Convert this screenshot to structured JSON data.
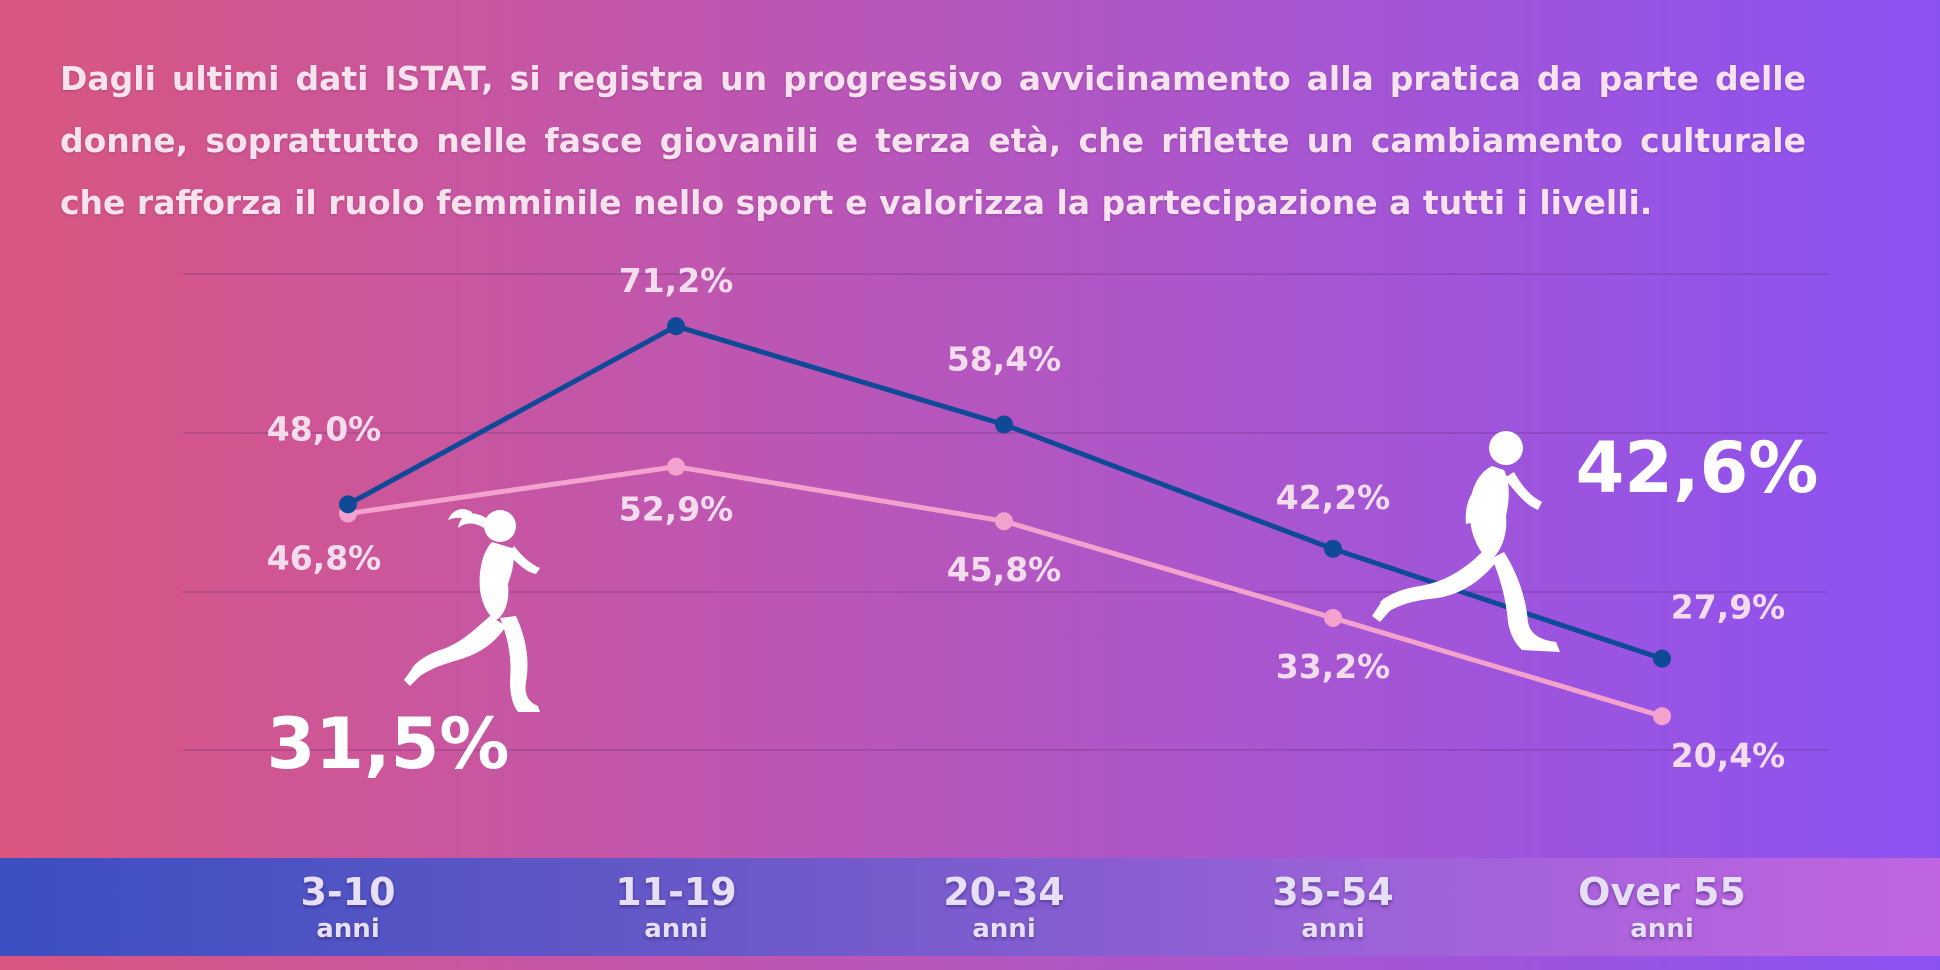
{
  "intro_text": "Dagli ultimi dati ISTAT, si registra un progressivo avvicinamento alla pratica da parte delle donne, soprattutto nelle fasce giovanili e terza età, che riflette un cambiamento culturale che rafforza il ruolo femminile nello sport e valorizza la partecipazione a tutti i livelli.",
  "colors": {
    "male_line": "#0f4a97",
    "female_line": "#f3a2cd",
    "background_start": "#d9567f",
    "background_end": "#8b52f3"
  },
  "highlights": {
    "female_total": "31,5%",
    "male_total": "42,6%"
  },
  "icons": {
    "female": "female-runner-icon",
    "male": "male-runner-icon"
  },
  "chart_data": {
    "type": "line",
    "categories": [
      {
        "name": "3-10",
        "unit": "anni"
      },
      {
        "name": "11-19",
        "unit": "anni"
      },
      {
        "name": "20-34",
        "unit": "anni"
      },
      {
        "name": "35-54",
        "unit": "anni"
      },
      {
        "name": "Over 55",
        "unit": "anni"
      }
    ],
    "series": [
      {
        "key": "male",
        "values": [
          48.0,
          71.2,
          58.4,
          42.2,
          27.9
        ],
        "labels": [
          "48,0%",
          "71,2%",
          "58,4%",
          "42,2%",
          "27,9%"
        ]
      },
      {
        "key": "female",
        "values": [
          46.8,
          52.9,
          45.8,
          33.2,
          20.4
        ],
        "labels": [
          "46,8%",
          "52,9%",
          "45,8%",
          "33,2%",
          "20,4%"
        ]
      }
    ],
    "ylim": [
      16,
      78
    ],
    "grid": true,
    "title": "",
    "xlabel": "",
    "ylabel": ""
  }
}
